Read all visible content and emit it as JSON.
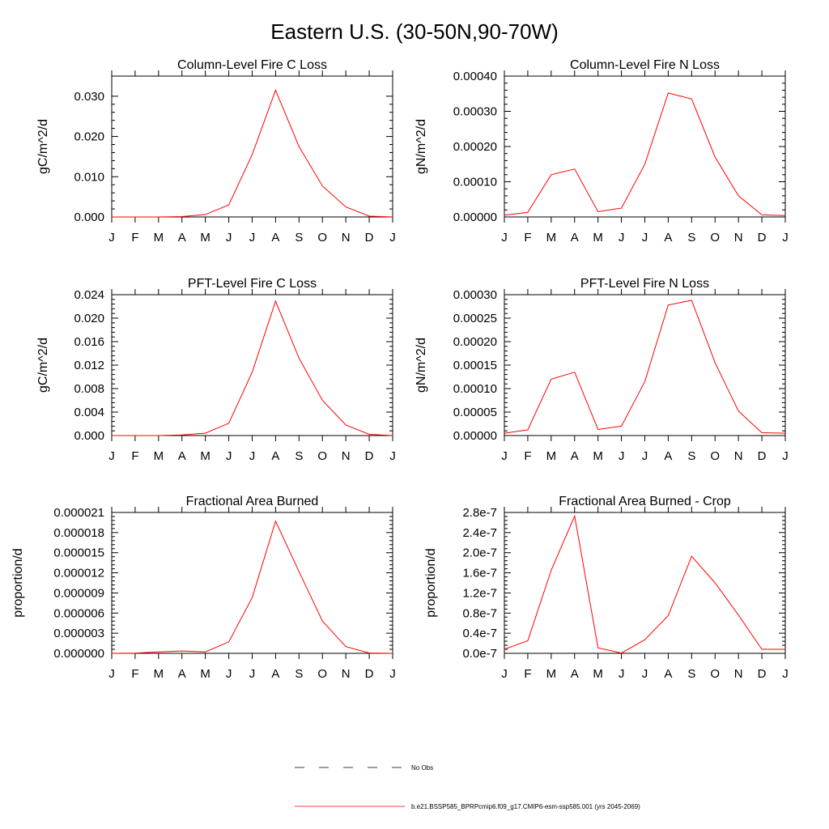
{
  "main_title": "Eastern U.S. (30-50N,90-70W)",
  "legend": {
    "obs_label": "No Obs",
    "model_label": "b.e21.BSSP585_BPRPcmip6.f09_g17.CMIP6-esm-ssp585.001 (yrs 2045-2069)",
    "model_color": "#ff0000",
    "obs_color": "#000000"
  },
  "chart_data": [
    {
      "type": "line",
      "title": "Column-Level Fire C Loss",
      "ylabel": "gC/m^2/d",
      "x": [
        "J",
        "F",
        "M",
        "A",
        "M",
        "J",
        "J",
        "A",
        "S",
        "O",
        "N",
        "D",
        "J"
      ],
      "ylim": [
        0,
        0.035
      ],
      "yticks": [
        0,
        0.01,
        0.02,
        0.03
      ],
      "yticklabels": [
        "0.000",
        "0.010",
        "0.020",
        "0.030"
      ],
      "series": [
        {
          "values": [
            0.0,
            0.0,
            0.0,
            0.0001,
            0.0006,
            0.003,
            0.0155,
            0.0315,
            0.0175,
            0.0077,
            0.0025,
            0.0002,
            0.0
          ]
        }
      ]
    },
    {
      "type": "line",
      "title": "Column-Level Fire N Loss",
      "ylabel": "gN/m^2/d",
      "x": [
        "J",
        "F",
        "M",
        "A",
        "M",
        "J",
        "J",
        "A",
        "S",
        "O",
        "N",
        "D",
        "J"
      ],
      "ylim": [
        0,
        0.0004
      ],
      "yticks": [
        0,
        0.0001,
        0.0002,
        0.0003,
        0.0004
      ],
      "yticklabels": [
        "0.00000",
        "0.00010",
        "0.00020",
        "0.00030",
        "0.00040"
      ],
      "series": [
        {
          "values": [
            5e-06,
            1.3e-05,
            0.00012,
            0.000136,
            1.5e-05,
            2.5e-05,
            0.00015,
            0.000352,
            0.000335,
            0.00017,
            6e-05,
            6e-06,
            4e-06
          ]
        }
      ]
    },
    {
      "type": "line",
      "title": "PFT-Level Fire C Loss",
      "ylabel": "gC/m^2/d",
      "x": [
        "J",
        "F",
        "M",
        "A",
        "M",
        "J",
        "J",
        "A",
        "S",
        "O",
        "N",
        "D",
        "J"
      ],
      "ylim": [
        0,
        0.024
      ],
      "yticks": [
        0,
        0.004,
        0.008,
        0.012,
        0.016,
        0.02,
        0.024
      ],
      "yticklabels": [
        "0.000",
        "0.004",
        "0.008",
        "0.012",
        "0.016",
        "0.020",
        "0.024"
      ],
      "series": [
        {
          "values": [
            0.0,
            0.0,
            0.0,
            0.0001,
            0.0004,
            0.0021,
            0.0108,
            0.0229,
            0.0132,
            0.006,
            0.0018,
            0.0002,
            0.0
          ]
        }
      ]
    },
    {
      "type": "line",
      "title": "PFT-Level Fire N Loss",
      "ylabel": "gN/m^2/d",
      "x": [
        "J",
        "F",
        "M",
        "A",
        "M",
        "J",
        "J",
        "A",
        "S",
        "O",
        "N",
        "D",
        "J"
      ],
      "ylim": [
        0,
        0.0003
      ],
      "yticks": [
        0,
        5e-05,
        0.0001,
        0.00015,
        0.0002,
        0.00025,
        0.0003
      ],
      "yticklabels": [
        "0.00000",
        "0.00005",
        "0.00010",
        "0.00015",
        "0.00020",
        "0.00025",
        "0.00030"
      ],
      "series": [
        {
          "values": [
            5e-06,
            1.2e-05,
            0.00012,
            0.000135,
            1.3e-05,
            2e-05,
            0.000115,
            0.000278,
            0.000288,
            0.000155,
            5.2e-05,
            6e-06,
            5e-06
          ]
        }
      ]
    },
    {
      "type": "line",
      "title": "Fractional Area Burned",
      "ylabel": "proportion/d",
      "x": [
        "J",
        "F",
        "M",
        "A",
        "M",
        "J",
        "J",
        "A",
        "S",
        "O",
        "N",
        "D",
        "J"
      ],
      "ylim": [
        0,
        2.1e-05
      ],
      "yticks": [
        0,
        3e-06,
        6e-06,
        9e-06,
        1.2e-05,
        1.5e-05,
        1.8e-05,
        2.1e-05
      ],
      "yticklabels": [
        "0.000000",
        "0.000003",
        "0.000006",
        "0.000009",
        "0.000012",
        "0.000015",
        "0.000018",
        "0.000021"
      ],
      "series": [
        {
          "values": [
            0.0,
            3e-08,
            2.2e-07,
            3.5e-07,
            2.2e-07,
            1.7e-06,
            8.3e-06,
            1.97e-05,
            1.22e-05,
            4.8e-06,
            1e-06,
            5e-08,
            0.0
          ]
        }
      ]
    },
    {
      "type": "line",
      "title": "Fractional Area Burned - Crop",
      "ylabel": "proportion/d",
      "x": [
        "J",
        "F",
        "M",
        "A",
        "M",
        "J",
        "J",
        "A",
        "S",
        "O",
        "N",
        "D",
        "J"
      ],
      "ylim": [
        0,
        2.8e-07
      ],
      "yticks": [
        0,
        4e-08,
        8e-08,
        1.2e-07,
        1.6e-07,
        2e-07,
        2.4e-07,
        2.8e-07
      ],
      "yticklabels": [
        "0.0e-7",
        "0.4e-7",
        "0.8e-7",
        "1.2e-7",
        "1.6e-7",
        "2.0e-7",
        "2.4e-7",
        "2.8e-7"
      ],
      "series": [
        {
          "values": [
            8e-09,
            2.5e-08,
            1.65e-07,
            2.73e-07,
            1.1e-08,
            5e-10,
            2.7e-08,
            7.5e-08,
            1.93e-07,
            1.4e-07,
            7.6e-08,
            8e-09,
            8e-09
          ]
        }
      ]
    }
  ]
}
